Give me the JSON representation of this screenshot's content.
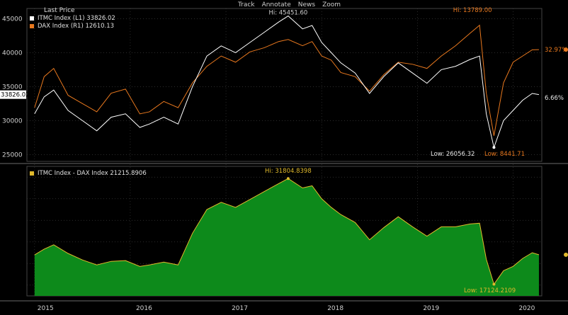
{
  "toolbar": {
    "track": "Track",
    "annotate": "Annotate",
    "news": "News",
    "zoom": "Zoom"
  },
  "legend": {
    "title": "Last Price",
    "itmc": "ITMC Index (L1) 33826.02",
    "dax": "DAX Index (R1) 12610.13",
    "spread": "ITMC Index - DAX Index 21215.8906"
  },
  "colors": {
    "background": "#000000",
    "itmc_line": "#ffffff",
    "dax_line": "#e8781e",
    "spread_fill": "#0d8a1b",
    "spread_line": "#e0b92c",
    "grid": "#3a3a3a"
  },
  "chart_data": [
    {
      "type": "line",
      "axes": {
        "left": "ITMC Index",
        "right": "DAX Index"
      },
      "x_ticks": [
        "2015",
        "2016",
        "2017",
        "2018",
        "2019",
        "2020"
      ],
      "y_left_ticks": [
        25000,
        30000,
        35000,
        40000,
        45000
      ],
      "y_left_range": [
        24000,
        46500
      ],
      "series": [
        {
          "name": "ITMC Index (L1)",
          "axis": "left",
          "last": 33826.02,
          "x": [
            2015.0,
            2015.1,
            2015.2,
            2015.35,
            2015.5,
            2015.65,
            2015.8,
            2015.95,
            2016.1,
            2016.2,
            2016.35,
            2016.5,
            2016.65,
            2016.8,
            2016.95,
            2017.1,
            2017.25,
            2017.4,
            2017.55,
            2017.65,
            2017.8,
            2017.9,
            2018.0,
            2018.1,
            2018.2,
            2018.35,
            2018.5,
            2018.65,
            2018.8,
            2018.95,
            2019.1,
            2019.25,
            2019.4,
            2019.55,
            2019.65,
            2019.72,
            2019.8,
            2019.9,
            2020.0,
            2020.1,
            2020.2,
            2020.27
          ],
          "y": [
            31000,
            33500,
            34500,
            31500,
            30000,
            28500,
            30500,
            31000,
            29000,
            29500,
            30500,
            29500,
            35000,
            39500,
            41000,
            40000,
            41500,
            43000,
            44500,
            45400,
            43500,
            44000,
            41500,
            40000,
            38500,
            37000,
            34000,
            36500,
            38500,
            37000,
            35500,
            37500,
            38000,
            39000,
            39500,
            31000,
            26056.32,
            30000,
            31500,
            33000,
            34000,
            33826.02
          ]
        },
        {
          "name": "DAX Index (R1)",
          "axis": "right",
          "last": 12610.13,
          "change_label": "32.97%",
          "x": [
            2015.0,
            2015.1,
            2015.2,
            2015.35,
            2015.5,
            2015.65,
            2015.8,
            2015.95,
            2016.1,
            2016.2,
            2016.35,
            2016.5,
            2016.65,
            2016.8,
            2016.95,
            2017.1,
            2017.25,
            2017.4,
            2017.55,
            2017.65,
            2017.8,
            2017.9,
            2018.0,
            2018.1,
            2018.2,
            2018.35,
            2018.5,
            2018.65,
            2018.8,
            2018.95,
            2019.1,
            2019.25,
            2019.4,
            2019.55,
            2019.65,
            2019.72,
            2019.8,
            2019.9,
            2020.0,
            2020.1,
            2020.2,
            2020.27
          ],
          "y": [
            9800,
            11300,
            11700,
            10400,
            10000,
            9600,
            10500,
            10700,
            9500,
            9600,
            10100,
            9800,
            11000,
            11800,
            12300,
            12000,
            12500,
            12700,
            13000,
            13100,
            12800,
            13000,
            12300,
            12100,
            11500,
            11300,
            10600,
            11400,
            12000,
            11900,
            11700,
            12300,
            12800,
            13400,
            13789.0,
            10500,
            8441.71,
            11000,
            12000,
            12300,
            12600,
            12610.13
          ]
        }
      ],
      "annotations": [
        {
          "text": "Hi: 45451.60",
          "series": "ITMC Index (L1)"
        },
        {
          "text": "Hi: 13789.00",
          "series": "DAX Index (R1)"
        },
        {
          "text": "Low: 26056.32",
          "series": "ITMC Index (L1)"
        },
        {
          "text": "Low: 8441.71",
          "series": "DAX Index (R1)"
        }
      ],
      "right_labels": [
        "32.97%",
        "6.66%"
      ],
      "left_last_label": "33826.02"
    },
    {
      "type": "area",
      "series": [
        {
          "name": "ITMC Index - DAX Index",
          "last": 21215.8906,
          "x": [
            2015.0,
            2015.1,
            2015.2,
            2015.35,
            2015.5,
            2015.65,
            2015.8,
            2015.95,
            2016.1,
            2016.2,
            2016.35,
            2016.5,
            2016.65,
            2016.8,
            2016.95,
            2017.1,
            2017.25,
            2017.4,
            2017.55,
            2017.65,
            2017.8,
            2017.9,
            2018.0,
            2018.1,
            2018.2,
            2018.35,
            2018.5,
            2018.65,
            2018.8,
            2018.95,
            2019.1,
            2019.25,
            2019.4,
            2019.55,
            2019.65,
            2019.72,
            2019.8,
            2019.9,
            2020.0,
            2020.1,
            2020.2,
            2020.27
          ],
          "y": [
            21200,
            22000,
            22600,
            21400,
            20500,
            19800,
            20300,
            20400,
            19600,
            19800,
            20200,
            19800,
            24200,
            27500,
            28500,
            27800,
            28900,
            30000,
            31100,
            31804.8398,
            30500,
            30800,
            29000,
            27800,
            26800,
            25700,
            23300,
            25000,
            26500,
            25100,
            23800,
            25100,
            25100,
            25500,
            25600,
            20600,
            17124.2109,
            19000,
            19600,
            20700,
            21500,
            21215.8906
          ]
        }
      ],
      "y_range": [
        15500,
        33500
      ],
      "annotations": [
        {
          "text": "Hi: 31804.8398"
        },
        {
          "text": "Low: 17124.2109"
        }
      ]
    }
  ]
}
